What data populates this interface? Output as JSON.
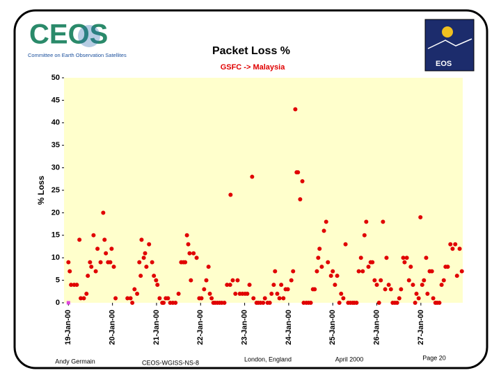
{
  "header": {
    "logo_text": "CEOS",
    "logo_subtitle": "Committee on Earth Observation Satellites",
    "badge_text": "EOS"
  },
  "chart_data": {
    "type": "scatter",
    "title": "Packet Loss %",
    "subtitle": "GSFC -> Malaysia",
    "y_label": "% Loss",
    "xlim": [
      18.9,
      27.95
    ],
    "ylim": [
      0,
      50
    ],
    "xticks": [
      {
        "value": 19,
        "label": "19-Jan-00"
      },
      {
        "value": 20,
        "label": "20-Jan-00"
      },
      {
        "value": 21,
        "label": "21-Jan-00"
      },
      {
        "value": 22,
        "label": "22-Jan-00"
      },
      {
        "value": 23,
        "label": "23-Jan-00"
      },
      {
        "value": 24,
        "label": "24-Jan-00"
      },
      {
        "value": 25,
        "label": "25-Jan-00"
      },
      {
        "value": 26,
        "label": "26-Jan-00"
      },
      {
        "value": 27,
        "label": "27-Jan-00"
      }
    ],
    "yticks": [
      0,
      5,
      10,
      15,
      20,
      25,
      30,
      35,
      40,
      45,
      50
    ],
    "plot_background": "#ffffcc",
    "series": [
      {
        "color": "#e00000",
        "marker": "circle",
        "x": [
          19.0,
          19.03,
          19.06,
          19.13,
          19.19,
          19.25,
          19.28,
          19.35,
          19.41,
          19.44,
          19.49,
          19.52,
          19.57,
          19.62,
          19.66,
          19.73,
          19.79,
          19.82,
          19.85,
          19.9,
          19.95,
          19.98,
          20.03,
          20.07,
          20.34,
          20.41,
          20.45,
          20.5,
          20.56,
          20.61,
          20.64,
          20.66,
          20.71,
          20.74,
          20.77,
          20.83,
          20.9,
          20.94,
          20.99,
          21.02,
          21.07,
          21.13,
          21.16,
          21.21,
          21.26,
          21.31,
          21.37,
          21.43,
          21.5,
          21.56,
          21.61,
          21.65,
          21.69,
          21.72,
          21.75,
          21.78,
          21.84,
          21.91,
          21.97,
          22.02,
          22.08,
          22.13,
          22.18,
          22.21,
          22.25,
          22.29,
          22.33,
          22.38,
          22.43,
          22.48,
          22.54,
          22.6,
          22.67,
          22.68,
          22.73,
          22.79,
          22.84,
          22.89,
          22.95,
          23.01,
          23.06,
          23.11,
          23.17,
          23.2,
          23.27,
          23.31,
          23.36,
          23.42,
          23.46,
          23.52,
          23.57,
          23.61,
          23.66,
          23.69,
          23.74,
          23.79,
          23.83,
          23.88,
          23.93,
          23.98,
          24.06,
          24.1,
          24.15,
          24.18,
          24.21,
          24.26,
          24.31,
          24.34,
          24.4,
          24.45,
          24.5,
          24.55,
          24.59,
          24.64,
          24.67,
          24.7,
          24.75,
          24.8,
          24.85,
          24.89,
          24.96,
          25.0,
          25.05,
          25.1,
          25.15,
          25.19,
          25.24,
          25.29,
          25.35,
          25.4,
          25.45,
          25.49,
          25.54,
          25.59,
          25.64,
          25.68,
          25.72,
          25.76,
          25.81,
          25.86,
          25.9,
          25.95,
          26.0,
          26.05,
          26.09,
          26.14,
          26.19,
          26.22,
          26.27,
          26.32,
          26.36,
          26.41,
          26.46,
          26.51,
          26.55,
          26.6,
          26.63,
          26.68,
          26.73,
          26.77,
          26.82,
          26.87,
          26.9,
          26.95,
          26.99,
          27.03,
          27.07,
          27.12,
          27.15,
          27.2,
          27.25,
          27.28,
          27.33,
          27.37,
          27.42,
          27.47,
          27.52,
          27.56,
          27.61,
          27.67,
          27.72,
          27.78,
          27.82,
          27.88,
          27.93
        ],
        "values": [
          9,
          7,
          4,
          4,
          4,
          14,
          1,
          1,
          2,
          6,
          9,
          8,
          15,
          7,
          12,
          9,
          20,
          14,
          11,
          9,
          9,
          12,
          8,
          1,
          1,
          1,
          0,
          3,
          2,
          9,
          6,
          14,
          10,
          11,
          8,
          13,
          9,
          6,
          5,
          4,
          1,
          0,
          0,
          1,
          1,
          0,
          0,
          0,
          2,
          9,
          9,
          9,
          15,
          13,
          11,
          5,
          11,
          10,
          1,
          1,
          3,
          5,
          8,
          2,
          1,
          0,
          0,
          0,
          0,
          0,
          0,
          4,
          4,
          24,
          5,
          2,
          5,
          2,
          2,
          2,
          2,
          4,
          28,
          1,
          0,
          0,
          0,
          0,
          1,
          0,
          0,
          2,
          4,
          7,
          2,
          1,
          4,
          1,
          3,
          3,
          5,
          7,
          43,
          29,
          29,
          23,
          27,
          0,
          0,
          0,
          0,
          3,
          3,
          7,
          10,
          12,
          8,
          16,
          18,
          9,
          6,
          7,
          4,
          6,
          0,
          2,
          1,
          13,
          0,
          0,
          0,
          0,
          0,
          7,
          10,
          7,
          15,
          18,
          8,
          9,
          9,
          5,
          4,
          0,
          5,
          18,
          3,
          10,
          4,
          3,
          0,
          0,
          0,
          1,
          3,
          10,
          9,
          10,
          5,
          8,
          4,
          0,
          2,
          1,
          19,
          4,
          5,
          10,
          2,
          7,
          7,
          1,
          0,
          0,
          0,
          4,
          5,
          8,
          8,
          13,
          12,
          13,
          6,
          12,
          7
        ]
      },
      {
        "color": "#dd44dd",
        "marker": "square",
        "x": [
          19.0
        ],
        "values": [
          0
        ]
      }
    ]
  },
  "footer": [
    "Andy Germain",
    "CEOS-WGISS-NS-8",
    "London, England",
    "April 2000",
    "Page 20"
  ]
}
